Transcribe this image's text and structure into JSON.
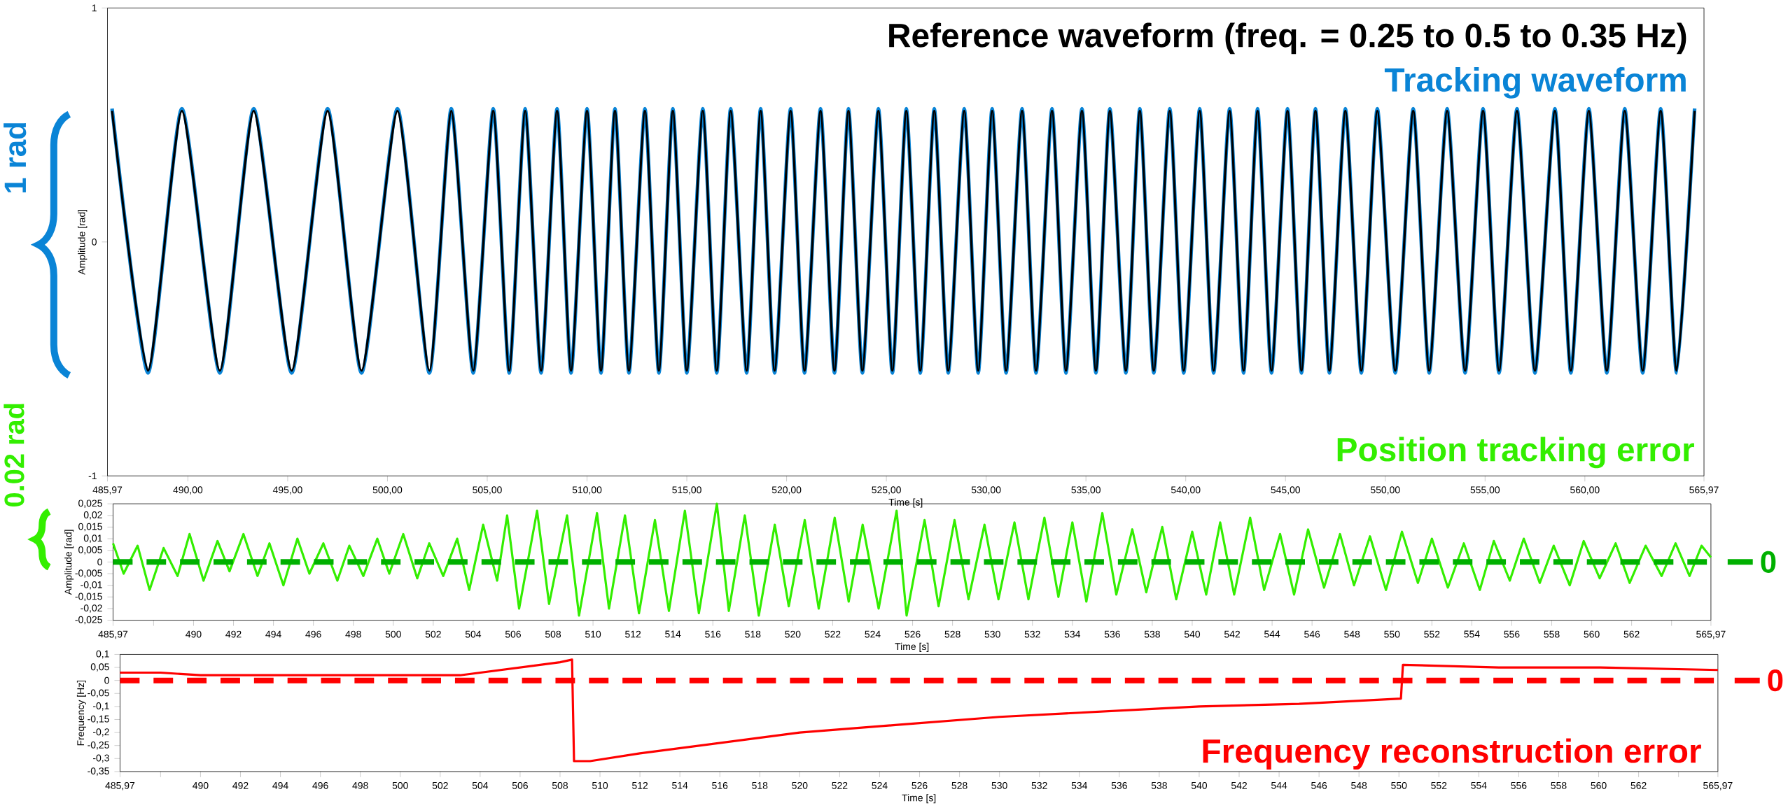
{
  "chart_data": [
    {
      "type": "line",
      "xlabel": "Time [s]",
      "ylabel": "Amplitude [rad]",
      "annotations": [
        "1 rad"
      ],
      "xlim": [
        485.97,
        565.97
      ],
      "ylim": [
        -1,
        1
      ],
      "yticks": [
        -1,
        0,
        1
      ],
      "xticks": [
        {
          "value": 485.97,
          "label": "485,97"
        },
        {
          "value": 490,
          "label": "490,00"
        },
        {
          "value": 495,
          "label": "495,00"
        },
        {
          "value": 500,
          "label": "500,00"
        },
        {
          "value": 505,
          "label": "505,00"
        },
        {
          "value": 510,
          "label": "510,00"
        },
        {
          "value": 515,
          "label": "515,00"
        },
        {
          "value": 520,
          "label": "520,00"
        },
        {
          "value": 525,
          "label": "525,00"
        },
        {
          "value": 530,
          "label": "530,00"
        },
        {
          "value": 535,
          "label": "535,00"
        },
        {
          "value": 540,
          "label": "540,00"
        },
        {
          "value": 545,
          "label": "545,00"
        },
        {
          "value": 550,
          "label": "550,00"
        },
        {
          "value": 555,
          "label": "555,00"
        },
        {
          "value": 560,
          "label": "560,00"
        },
        {
          "value": 565.97,
          "label": "565,97"
        }
      ],
      "x": [
        486.2,
        488.0,
        489.7,
        491.6,
        493.3,
        495.2,
        497.0,
        498.7,
        500.5,
        502.1,
        503.2,
        504.3,
        505.3,
        506.1,
        506.9,
        507.7,
        508.5,
        509.2,
        510.0,
        510.7,
        511.4,
        512.1,
        512.9,
        513.6,
        514.3,
        515.0,
        515.8,
        516.5,
        517.2,
        518.0,
        518.7,
        519.4,
        520.2,
        520.9,
        521.7,
        522.4,
        523.1,
        523.8,
        524.6,
        525.3,
        526.0,
        526.7,
        527.4,
        528.1,
        528.9,
        529.6,
        530.3,
        531.0,
        531.8,
        532.5,
        533.3,
        534.0,
        534.8,
        535.5,
        536.2,
        537.0,
        537.7,
        538.4,
        539.2,
        539.9,
        540.7,
        541.4,
        542.2,
        542.9,
        543.6,
        544.3,
        545.1,
        545.8,
        546.5,
        547.2,
        548.0,
        548.8,
        549.6,
        550.5,
        551.4,
        552.2,
        553.1,
        554.0,
        554.9,
        555.7,
        556.6,
        557.5,
        558.5,
        559.3,
        560.2,
        561.1,
        562.0,
        562.9,
        563.8,
        564.6,
        565.5
      ],
      "series": [
        {
          "name": "Reference waveform (freq. = 0.25 to 0.5 to 0.35 Hz)",
          "color": "#000000",
          "values": [
            0.56,
            -0.55,
            0.56,
            -0.55,
            0.56,
            -0.55,
            0.56,
            -0.55,
            0.56,
            -0.55,
            0.56,
            -0.55,
            0.56,
            -0.55,
            0.56,
            -0.55,
            0.56,
            -0.55,
            0.56,
            -0.55,
            0.56,
            -0.55,
            0.56,
            -0.55,
            0.56,
            -0.55,
            0.56,
            -0.55,
            0.56,
            -0.55,
            0.56,
            -0.55,
            0.56,
            -0.55,
            0.56,
            -0.55,
            0.56,
            -0.55,
            0.56,
            -0.55,
            0.56,
            -0.55,
            0.56,
            -0.55,
            0.56,
            -0.55,
            0.56,
            -0.55,
            0.56,
            -0.55,
            0.56,
            -0.55,
            0.56,
            -0.55,
            0.56,
            -0.55,
            0.56,
            -0.55,
            0.56,
            -0.55,
            0.56,
            -0.55,
            0.56,
            -0.55,
            0.56,
            -0.55,
            0.56,
            -0.55,
            0.56,
            -0.55,
            0.56,
            -0.55,
            0.56,
            -0.55,
            0.56,
            -0.55,
            0.56,
            -0.55,
            0.56,
            -0.55,
            0.56,
            -0.55,
            0.56,
            -0.55,
            0.56,
            -0.55,
            0.56,
            -0.55,
            0.56,
            -0.55,
            0.56
          ]
        },
        {
          "name": "Tracking waveform",
          "color": "#0a84d6",
          "values": [
            0.57,
            -0.56,
            0.57,
            -0.56,
            0.57,
            -0.56,
            0.57,
            -0.56,
            0.57,
            -0.56,
            0.57,
            -0.56,
            0.57,
            -0.56,
            0.57,
            -0.56,
            0.57,
            -0.56,
            0.57,
            -0.56,
            0.57,
            -0.56,
            0.57,
            -0.56,
            0.57,
            -0.56,
            0.57,
            -0.56,
            0.57,
            -0.56,
            0.57,
            -0.56,
            0.57,
            -0.56,
            0.57,
            -0.56,
            0.57,
            -0.56,
            0.57,
            -0.56,
            0.57,
            -0.56,
            0.57,
            -0.56,
            0.57,
            -0.56,
            0.57,
            -0.56,
            0.57,
            -0.56,
            0.57,
            -0.56,
            0.57,
            -0.56,
            0.57,
            -0.56,
            0.57,
            -0.56,
            0.57,
            -0.56,
            0.57,
            -0.56,
            0.57,
            -0.56,
            0.57,
            -0.56,
            0.57,
            -0.56,
            0.57,
            -0.56,
            0.57,
            -0.56,
            0.57,
            -0.56,
            0.57,
            -0.56,
            0.57,
            -0.56,
            0.57,
            -0.56,
            0.57,
            -0.56,
            0.57,
            -0.56,
            0.57,
            -0.56,
            0.57,
            -0.56,
            0.57,
            -0.56,
            0.57
          ]
        }
      ]
    },
    {
      "type": "line",
      "xlabel": "Time [s]",
      "ylabel": "Amplitude [rad]",
      "annotations": [
        "0.02 rad"
      ],
      "xlim": [
        485.97,
        565.97
      ],
      "ylim": [
        -0.025,
        0.025
      ],
      "yticks": [
        {
          "value": -0.025,
          "label": "-0,025"
        },
        {
          "value": -0.02,
          "label": "-0,02"
        },
        {
          "value": -0.015,
          "label": "-0,015"
        },
        {
          "value": -0.01,
          "label": "-0,01"
        },
        {
          "value": -0.005,
          "label": "-0,005"
        },
        0,
        {
          "value": 0.005,
          "label": "0,005"
        },
        {
          "value": 0.01,
          "label": "0,01"
        },
        {
          "value": 0.015,
          "label": "0,015"
        },
        {
          "value": 0.02,
          "label": "0,02"
        },
        {
          "value": 0.025,
          "label": "0,025"
        }
      ],
      "xticks": [
        {
          "value": 485.97,
          "label": "485,97"
        },
        {
          "value": 488,
          "label": null
        },
        490,
        492,
        494,
        496,
        498,
        500,
        502,
        504,
        506,
        508,
        510,
        512,
        514,
        516,
        518,
        520,
        522,
        524,
        526,
        528,
        530,
        532,
        534,
        536,
        538,
        540,
        542,
        544,
        546,
        548,
        550,
        552,
        554,
        556,
        558,
        560,
        562,
        {
          "value": 564,
          "label": null
        },
        {
          "value": 565.97,
          "label": "565,97"
        }
      ],
      "ref_lines": [
        {
          "axis": "y",
          "value": 0,
          "label": "0",
          "color": "#00b000",
          "line_style": "dashed"
        }
      ],
      "series": [
        {
          "name": "Position tracking error",
          "color": "#33ee00",
          "x": [
            485.97,
            486.5,
            487.2,
            487.8,
            488.5,
            489.2,
            489.8,
            490.5,
            491.2,
            491.8,
            492.5,
            493.2,
            493.8,
            494.5,
            495.2,
            495.8,
            496.5,
            497.2,
            497.8,
            498.5,
            499.2,
            499.8,
            500.5,
            501.2,
            501.8,
            502.5,
            503.2,
            503.8,
            504.5,
            505.2,
            505.7,
            506.3,
            507.2,
            507.8,
            508.7,
            509.3,
            510.2,
            510.8,
            511.6,
            512.3,
            513.1,
            513.8,
            514.6,
            515.3,
            516.2,
            516.8,
            517.6,
            518.3,
            519.1,
            519.8,
            520.6,
            521.3,
            522.1,
            522.8,
            523.5,
            524.3,
            525.2,
            525.7,
            526.6,
            527.3,
            528.1,
            528.8,
            529.6,
            530.3,
            531.1,
            531.8,
            532.6,
            533.3,
            534.0,
            534.7,
            535.5,
            536.2,
            537.0,
            537.7,
            538.5,
            539.2,
            540.0,
            540.7,
            541.4,
            542.1,
            542.9,
            543.6,
            544.4,
            545.1,
            545.8,
            546.6,
            547.4,
            548.1,
            548.9,
            549.7,
            550.5,
            551.3,
            552.0,
            552.8,
            553.6,
            554.4,
            555.1,
            555.9,
            556.6,
            557.4,
            558.1,
            558.9,
            559.6,
            560.4,
            561.2,
            561.9,
            562.7,
            563.5,
            564.2,
            564.9,
            565.5,
            565.97
          ],
          "values": [
            0.008,
            -0.005,
            0.007,
            -0.012,
            0.006,
            -0.006,
            0.012,
            -0.008,
            0.009,
            -0.004,
            0.012,
            -0.006,
            0.008,
            -0.01,
            0.01,
            -0.005,
            0.008,
            -0.008,
            0.007,
            -0.006,
            0.01,
            -0.005,
            0.012,
            -0.007,
            0.008,
            -0.006,
            0.01,
            -0.012,
            0.016,
            -0.008,
            0.02,
            -0.02,
            0.022,
            -0.018,
            0.02,
            -0.023,
            0.021,
            -0.02,
            0.02,
            -0.022,
            0.018,
            -0.021,
            0.022,
            -0.022,
            0.025,
            -0.021,
            0.02,
            -0.023,
            0.016,
            -0.019,
            0.018,
            -0.02,
            0.019,
            -0.017,
            0.016,
            -0.02,
            0.022,
            -0.023,
            0.018,
            -0.019,
            0.018,
            -0.016,
            0.016,
            -0.016,
            0.017,
            -0.016,
            0.019,
            -0.015,
            0.017,
            -0.017,
            0.021,
            -0.014,
            0.014,
            -0.013,
            0.015,
            -0.016,
            0.013,
            -0.014,
            0.017,
            -0.014,
            0.019,
            -0.012,
            0.012,
            -0.014,
            0.014,
            -0.011,
            0.012,
            -0.01,
            0.011,
            -0.012,
            0.013,
            -0.009,
            0.01,
            -0.011,
            0.008,
            -0.012,
            0.009,
            -0.008,
            0.01,
            -0.009,
            0.007,
            -0.01,
            0.009,
            -0.007,
            0.008,
            -0.009,
            0.007,
            -0.006,
            0.008,
            -0.006,
            0.007,
            0.002
          ]
        }
      ]
    },
    {
      "type": "line",
      "xlabel": "Time [s]",
      "ylabel": "Frequency [Hz]",
      "xlim": [
        485.97,
        565.97
      ],
      "ylim": [
        -0.35,
        0.1
      ],
      "yticks": [
        {
          "value": -0.35,
          "label": "-0,35"
        },
        {
          "value": -0.3,
          "label": "-0,3"
        },
        {
          "value": -0.25,
          "label": "-0,25"
        },
        {
          "value": -0.2,
          "label": "-0,2"
        },
        {
          "value": -0.15,
          "label": "-0,15"
        },
        {
          "value": -0.1,
          "label": "-0,1"
        },
        {
          "value": -0.05,
          "label": "-0,05"
        },
        0,
        {
          "value": 0.05,
          "label": "0,05"
        },
        {
          "value": 0.1,
          "label": "0,1"
        }
      ],
      "xticks": [
        {
          "value": 485.97,
          "label": "485,97"
        },
        {
          "value": 488,
          "label": null
        },
        490,
        492,
        494,
        496,
        498,
        500,
        502,
        504,
        506,
        508,
        510,
        512,
        514,
        516,
        518,
        520,
        522,
        524,
        526,
        528,
        530,
        532,
        534,
        536,
        538,
        540,
        542,
        544,
        546,
        548,
        550,
        552,
        554,
        556,
        558,
        560,
        562,
        {
          "value": 564,
          "label": null
        },
        {
          "value": 565.97,
          "label": "565,97"
        }
      ],
      "ref_lines": [
        {
          "axis": "y",
          "value": 0,
          "label": "0",
          "color": "#ff0000",
          "line_style": "dashed"
        }
      ],
      "series": [
        {
          "name": "Frequency reconstruction error",
          "color": "#ff0000",
          "x": [
            485.97,
            488,
            490,
            495,
            500,
            502,
            503,
            504,
            505,
            506,
            507,
            508,
            508.6,
            508.7,
            509.5,
            512,
            515,
            520,
            525,
            530,
            535,
            540,
            545,
            550.1,
            550.2,
            555,
            560,
            565.97
          ],
          "values": [
            0.03,
            0.03,
            0.02,
            0.02,
            0.02,
            0.02,
            0.02,
            0.03,
            0.04,
            0.05,
            0.06,
            0.07,
            0.08,
            -0.31,
            -0.31,
            -0.28,
            -0.25,
            -0.2,
            -0.17,
            -0.14,
            -0.12,
            -0.1,
            -0.09,
            -0.07,
            0.06,
            0.05,
            0.05,
            0.04
          ]
        }
      ]
    }
  ]
}
